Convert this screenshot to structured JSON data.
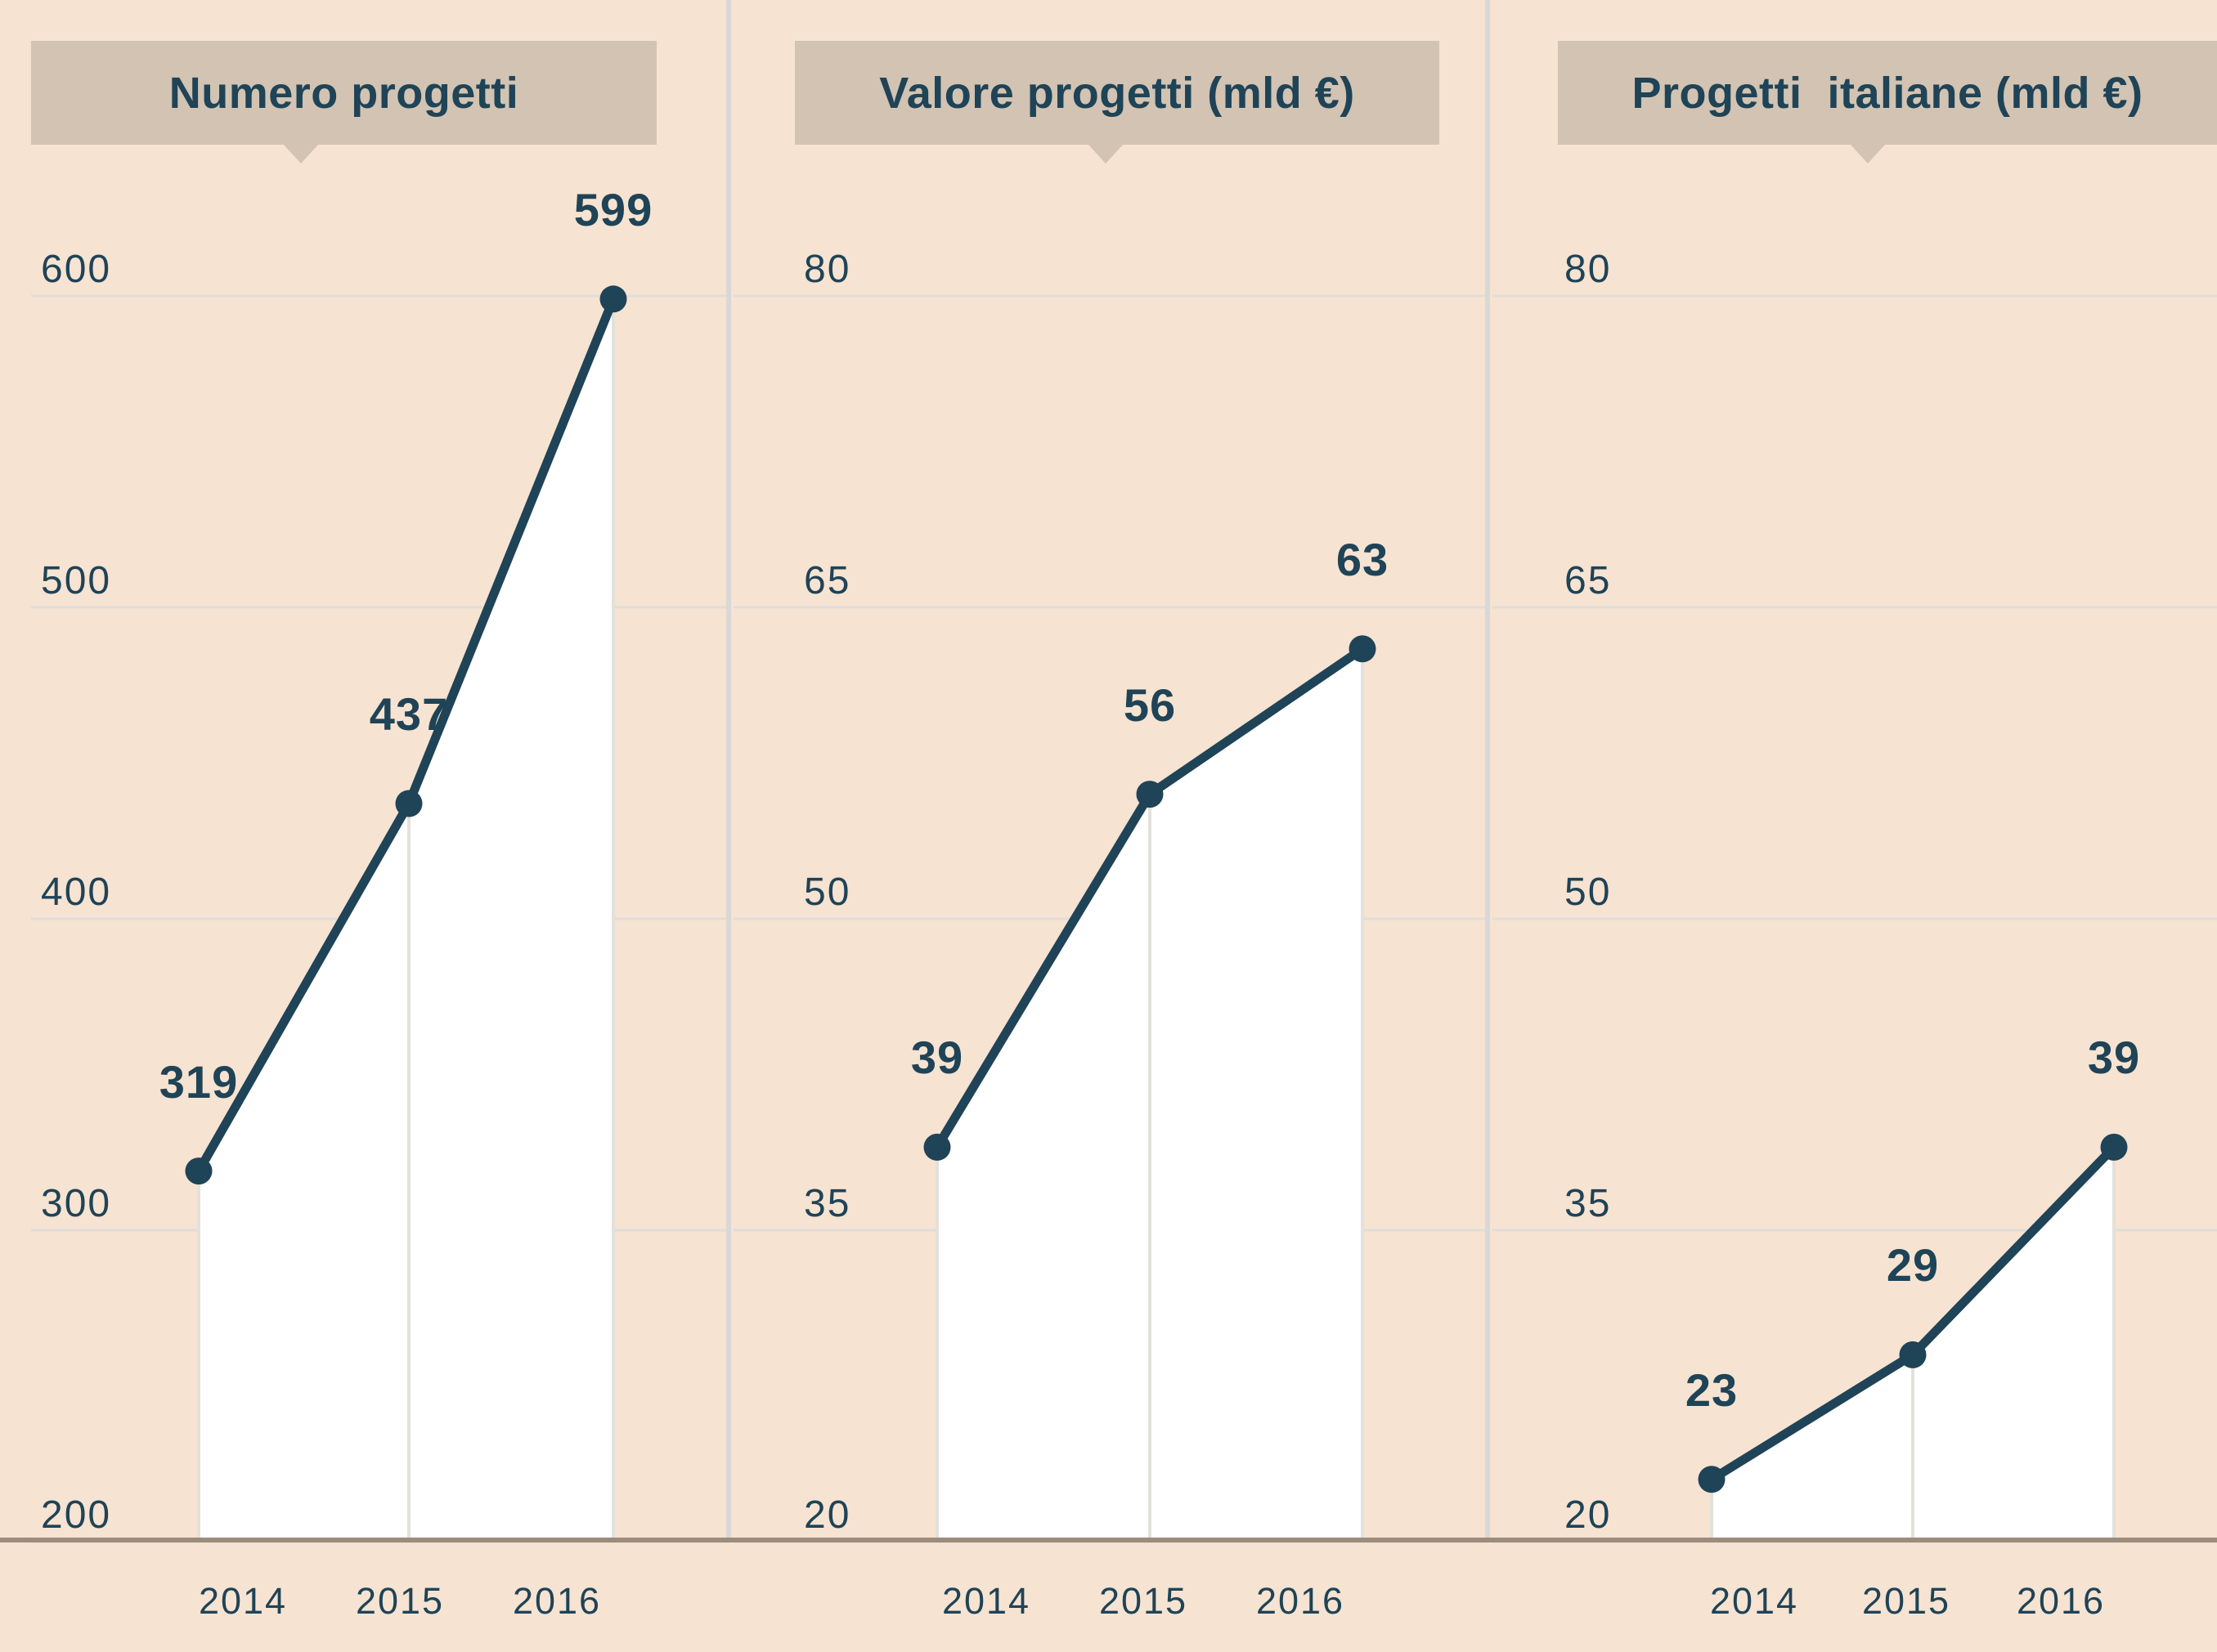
{
  "chart_data": [
    {
      "type": "line",
      "title": "Numero progetti",
      "categories": [
        "2014",
        "2015",
        "2016"
      ],
      "values": [
        319,
        437,
        599
      ],
      "value_labels": [
        "319",
        "437",
        "599"
      ],
      "yticks": [
        600,
        500,
        400,
        300,
        200
      ],
      "ylim": [
        200,
        600
      ],
      "grid": true,
      "area_fill": "white",
      "legend": "none"
    },
    {
      "type": "line",
      "title": "Valore progetti (mld €)",
      "categories": [
        "2014",
        "2015",
        "2016"
      ],
      "values": [
        39,
        56,
        63
      ],
      "value_labels": [
        "39",
        "56",
        "63"
      ],
      "yticks": [
        80,
        65,
        50,
        35,
        20
      ],
      "ylim": [
        20,
        80
      ],
      "grid": true,
      "area_fill": "white",
      "legend": "none"
    },
    {
      "type": "line",
      "title": "Progetti  italiane (mld €)",
      "categories": [
        "2014",
        "2015",
        "2016"
      ],
      "values": [
        23,
        29,
        39
      ],
      "value_labels": [
        "23",
        "29",
        "39"
      ],
      "yticks": [
        80,
        65,
        50,
        35,
        20
      ],
      "ylim": [
        20,
        80
      ],
      "grid": true,
      "area_fill": "white",
      "legend": "none"
    }
  ],
  "colors": {
    "background": "#f6e3d1",
    "title_box": "#d2c3b2",
    "text_and_line": "#1f4357",
    "gridline": "#e0ddda",
    "panel_separator": "#dad8d6",
    "area_fill": "#ffffff",
    "area_edge_line": "#e3e1db",
    "baseline": "#9d8c7b"
  }
}
